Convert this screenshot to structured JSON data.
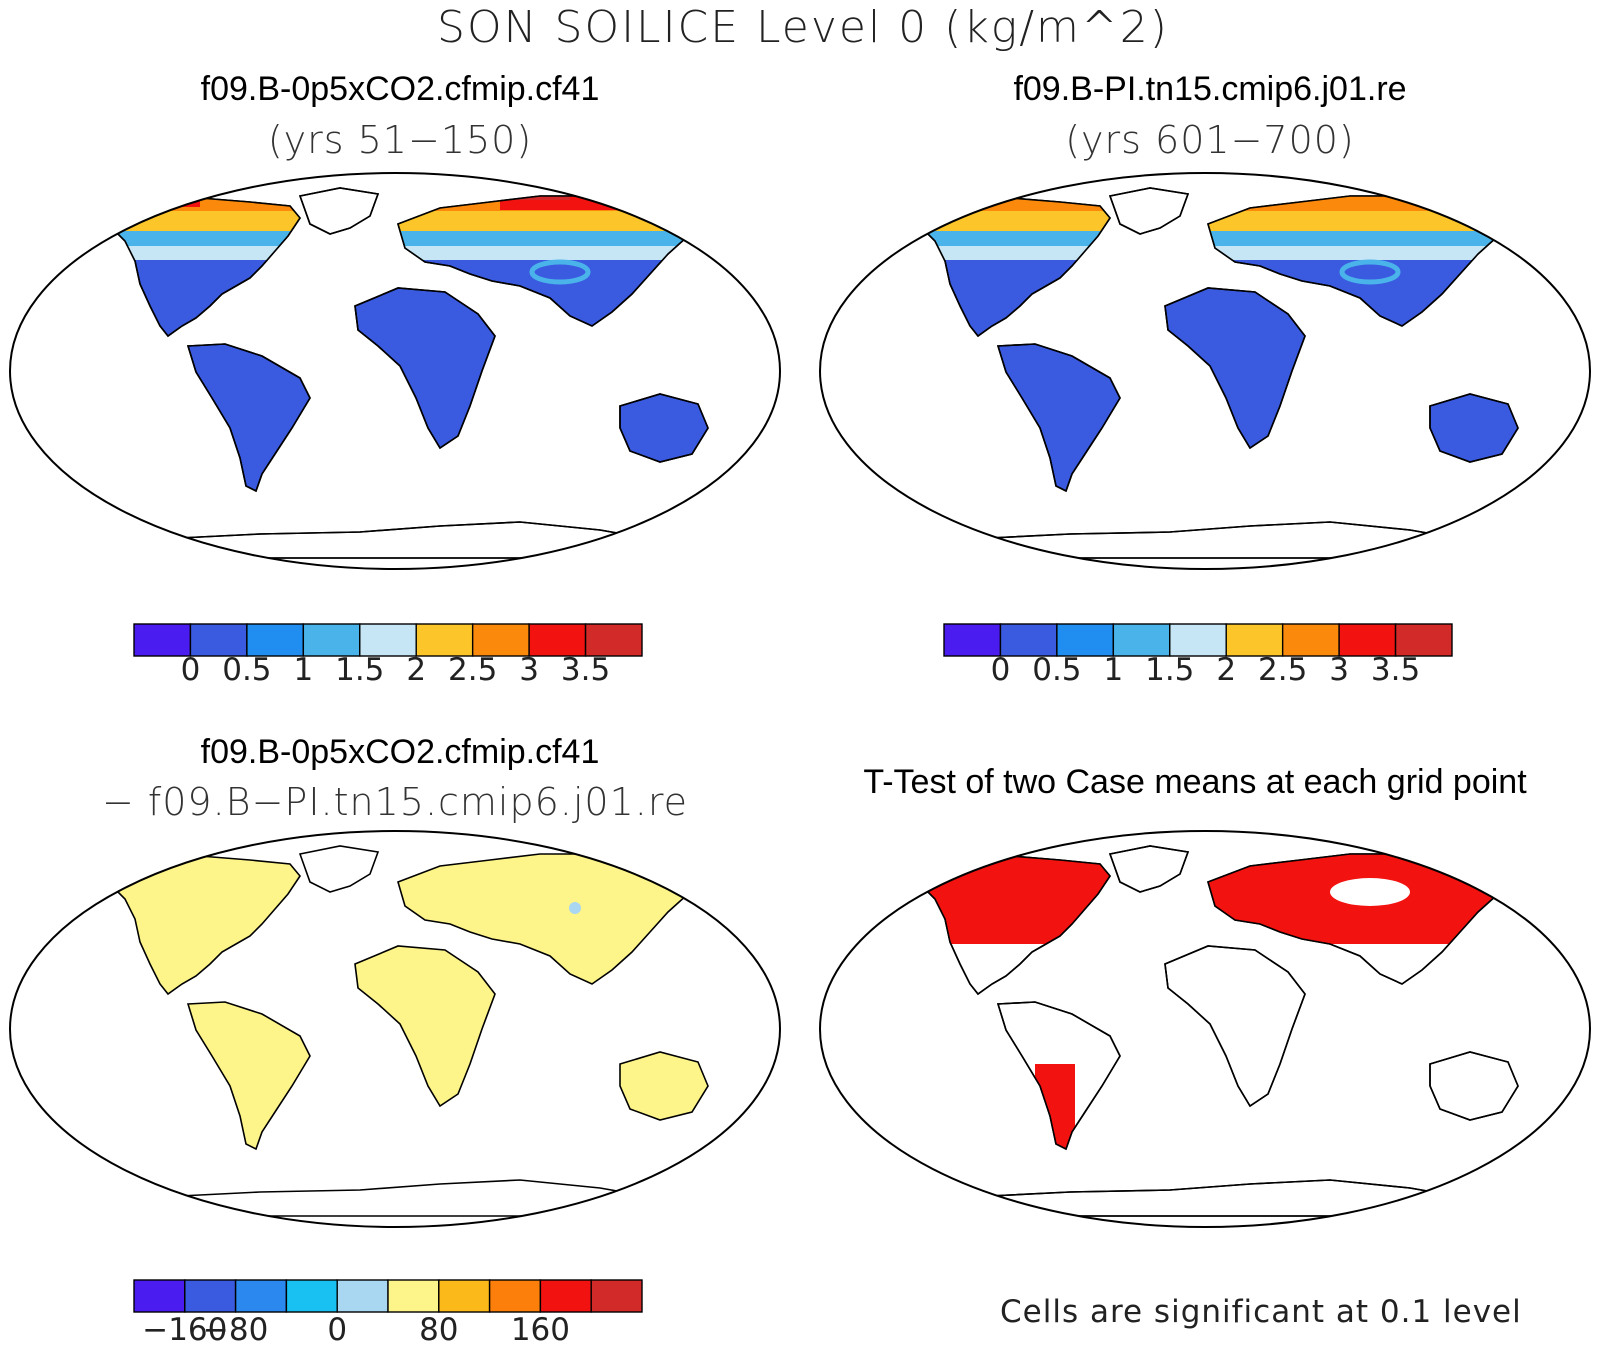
{
  "title": "SON SOILICE Level 0 (kg/m^2)",
  "panels": [
    {
      "case": "f09.B-0p5xCO2.cfmip.cf41",
      "subtitle": "(yrs 51−150)",
      "map_style": "field"
    },
    {
      "case": "f09.B-PI.tn15.cmip6.j01.re",
      "subtitle": "(yrs 601−700)",
      "map_style": "field"
    },
    {
      "case": "f09.B-0p5xCO2.cfmip.cf41",
      "subtitle": "− f09.B−PI.tn15.cmip6.j01.re",
      "map_style": "difference"
    },
    {
      "case": "T-Test of two Case means at each grid point",
      "subtitle": "",
      "map_style": "ttest"
    }
  ],
  "colorbars": {
    "field": {
      "colors": [
        "#4a1cf0",
        "#3a5be0",
        "#1f8ef0",
        "#4ab4ea",
        "#c6e6f6",
        "#fcc52a",
        "#fb8a0c",
        "#f2120f",
        "#d22a28"
      ],
      "labels": [
        "0",
        "0.5",
        "1",
        "1.5",
        "2",
        "2.5",
        "3",
        "3.5"
      ]
    },
    "difference": {
      "colors": [
        "#4a1cf0",
        "#3a5be0",
        "#2a88ee",
        "#19c0f2",
        "#a9d6f0",
        "#fdf48a",
        "#fcb91a",
        "#fb7f0a",
        "#f2120f",
        "#d22a28"
      ],
      "labels": [
        "−160",
        "−80",
        "0",
        "80",
        "160"
      ],
      "label_boundaries": [
        1,
        2,
        4,
        6,
        8
      ]
    }
  },
  "footnote": "Cells are significant at 0.1 level",
  "map_colors": {
    "land_low": "#3a5be0",
    "land_difference": "#fdf48a",
    "significant": "#f2120f",
    "warm_band": [
      "#fcc52a",
      "#fb8a0c",
      "#f2120f",
      "#d22a28"
    ],
    "cool_band": [
      "#c6e6f6",
      "#4ab4ea"
    ]
  }
}
